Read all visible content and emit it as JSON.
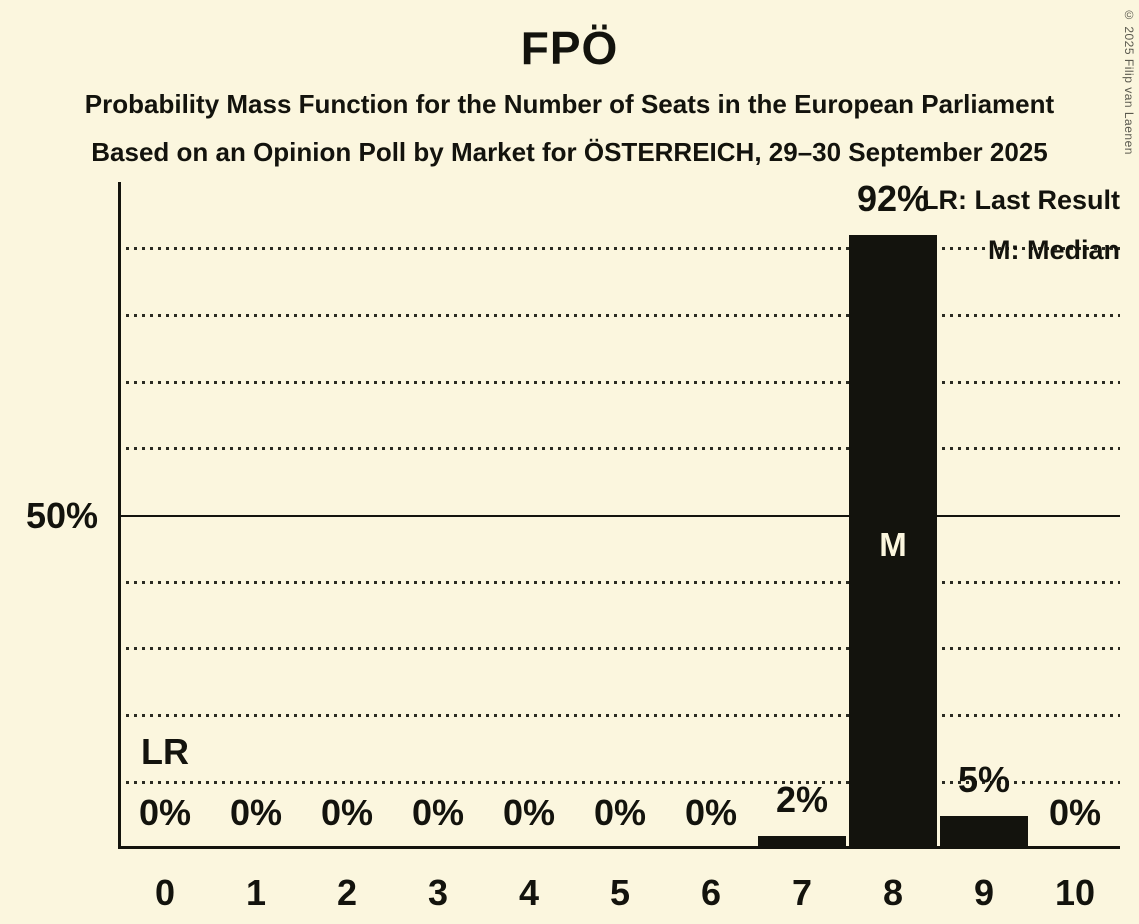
{
  "title": "FPÖ",
  "subtitle_line1": "Probability Mass Function for the Number of Seats in the European Parliament",
  "subtitle_line2": "Based on an Opinion Poll by Market for ÖSTERREICH, 29–30 September 2025",
  "copyright": "© 2025 Filip van Laenen",
  "legend": {
    "last_result": "LR: Last Result",
    "median": "M: Median"
  },
  "y_axis": {
    "label_50": "50%"
  },
  "annotations": {
    "last_result_marker": "LR",
    "median_marker": "M"
  },
  "colors": {
    "background": "#FBF6DE",
    "ink": "#13130D",
    "bar": "#13130D",
    "median_text": "#FBF6DE",
    "copyright_text": "#5A594E"
  },
  "chart_data": {
    "type": "bar",
    "title": "FPÖ",
    "categories": [
      "0",
      "1",
      "2",
      "3",
      "4",
      "5",
      "6",
      "7",
      "8",
      "9",
      "10"
    ],
    "values": [
      0,
      0,
      0,
      0,
      0,
      0,
      0,
      2,
      92,
      5,
      0
    ],
    "bar_labels": [
      "0%",
      "0%",
      "0%",
      "0%",
      "0%",
      "0%",
      "0%",
      "2%",
      "92%",
      "5%",
      "0%"
    ],
    "xlabel": "",
    "ylabel": "",
    "ylim": [
      0,
      100
    ],
    "y_gridlines_pct": [
      10,
      20,
      30,
      40,
      60,
      70,
      80,
      90
    ],
    "y_solid_line_pct": 50,
    "y_tick_labels": {
      "50": "50%"
    },
    "last_result_seat_index": 0,
    "median_seat_index": 8,
    "grid": "dotted",
    "legend_position": "top-right"
  }
}
